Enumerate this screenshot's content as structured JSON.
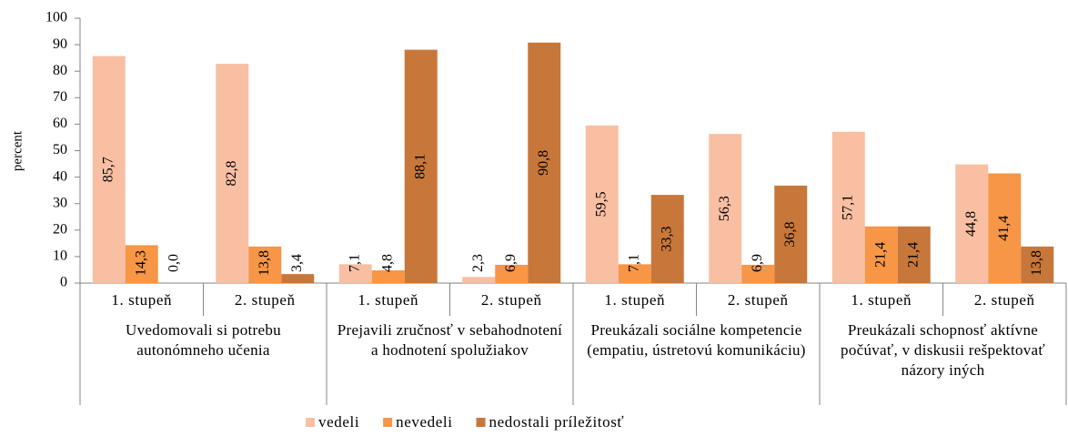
{
  "chart_data": {
    "type": "bar",
    "y_label": "percent",
    "categories": [
      "1. stupeň",
      "2. stupeň",
      "1. stupeň",
      "2. stupeň",
      "1. stupeň",
      "2. stupeň",
      "1. stupeň",
      "2. stupeň"
    ],
    "groups": [
      "Uvedomovali si potrebu autonómneho učenia",
      "Prejavili zručnosť v sebahodnotení a hodnotení spolužiakov",
      "Preukázali sociálne kompetencie (empatiu, ústretovú komunikáciu)",
      "Preukázali schopnosť aktívne počúvať, v diskusii rešpektovať názory iných"
    ],
    "series": [
      {
        "name": "vedeli",
        "color": "#f9bfa3",
        "values": [
          85.7,
          82.8,
          7.1,
          2.3,
          59.5,
          56.3,
          57.1,
          44.8
        ],
        "value_labels": [
          "85,7",
          "82,8",
          "7,1",
          "2,3",
          "59,5",
          "56,3",
          "57,1",
          "44,8"
        ]
      },
      {
        "name": "nevedeli",
        "color": "#f79646",
        "values": [
          14.3,
          13.8,
          4.8,
          6.9,
          7.1,
          6.9,
          21.4,
          41.4
        ],
        "value_labels": [
          "14,3",
          "13,8",
          "4,8",
          "6,9",
          "7,1",
          "6,9",
          "21,4",
          "41,4"
        ]
      },
      {
        "name": "nedostali príležitosť",
        "color": "#c8773a",
        "values": [
          0.0,
          3.4,
          88.1,
          90.8,
          33.3,
          36.8,
          21.4,
          13.8
        ],
        "value_labels": [
          "0,0",
          "3,4",
          "88,1",
          "90,8",
          "33,3",
          "36,8",
          "21,4",
          "13,8"
        ]
      }
    ],
    "ylim": [
      0,
      100
    ],
    "yticks": [
      0,
      10,
      20,
      30,
      40,
      50,
      60,
      70,
      80,
      90,
      100
    ],
    "legend": "bottom"
  }
}
